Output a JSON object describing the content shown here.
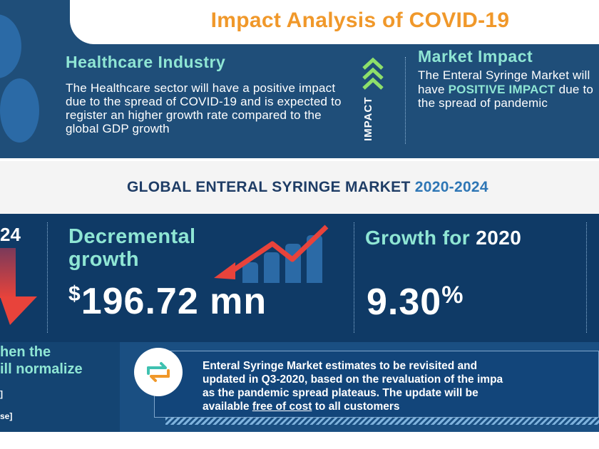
{
  "header": {
    "title": "Impact Analysis of COVID-19"
  },
  "healthcare": {
    "heading": "Healthcare Industry",
    "body": "The Healthcare sector will have a positive impact due to the spread of COVID-19 and is expected to register an higher growth rate compared to the global GDP growth"
  },
  "impact_label": "IMPACT",
  "market_impact": {
    "heading": "Market Impact",
    "body_before": "The Enteral Syringe Market will have",
    "highlight": "POSITIVE IMPACT",
    "body_after": "due to the spread of pandemic"
  },
  "market": {
    "title": "GLOBAL ENTERAL SYRINGE MARKET",
    "years": "2020-2024"
  },
  "stats": {
    "left_fragment": "24",
    "decremental_label": "Decremental growth",
    "decremental_currency": "$",
    "decremental_value": "196.72 mn",
    "growth_label": "Growth for",
    "growth_year": "2020",
    "growth_value": "9.30",
    "growth_unit": "%"
  },
  "bottom": {
    "left_text": "hen the\nill normalize",
    "left_bracket_1": "]",
    "left_bracket_2": "se]",
    "update_text_1": "Enteral Syringe Market estimates to be revisited and",
    "update_text_2": "updated in Q3-2020, based on the revaluation of the impa",
    "update_text_3": "as the pandemic spread plateaus. The update will be",
    "update_text_4_before": "available",
    "update_text_4_link": "free of cost",
    "update_text_4_after": "to all customers"
  },
  "colors": {
    "navy": "#1f4e79",
    "orange": "#f0982a",
    "teal": "#8fe6d4",
    "red": "#e8433b"
  }
}
